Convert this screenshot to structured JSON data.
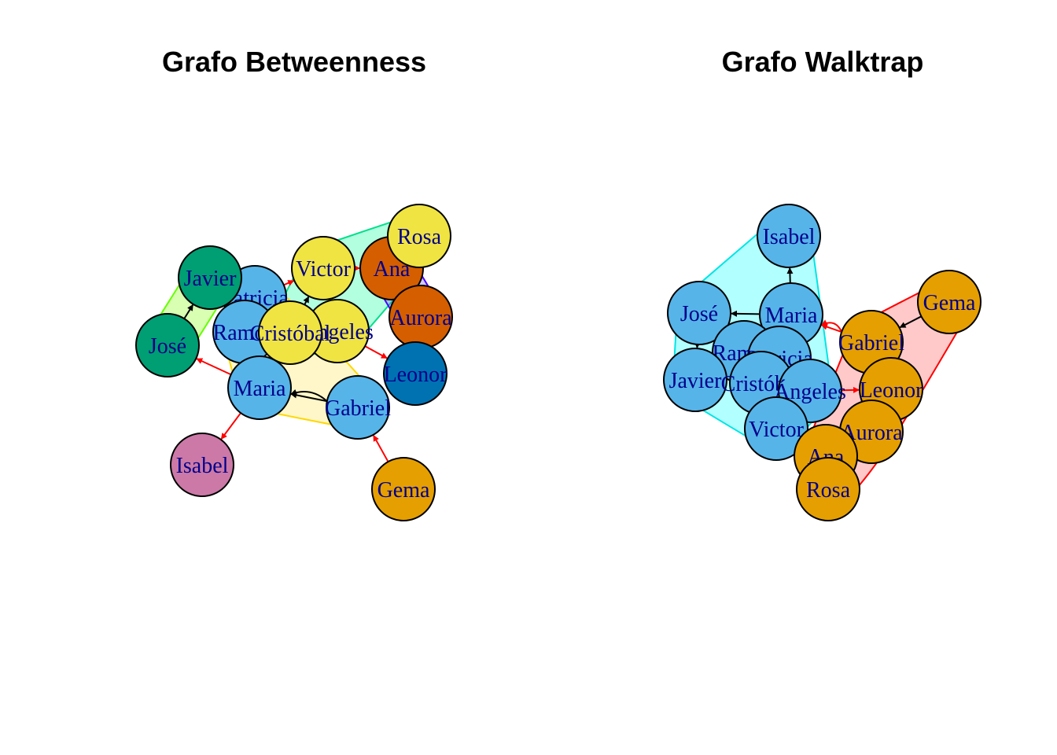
{
  "panels": [
    {
      "id": "betweenness",
      "title": "Grafo Betweenness",
      "hulls": [
        {
          "fill": "#7fff00",
          "stroke": "#66ff00",
          "members": [
            "Javier",
            "José"
          ]
        },
        {
          "fill": "#00ff99",
          "stroke": "#00e08a",
          "members": [
            "Victor",
            "Rosa",
            "Ángeles",
            "Cristóbal",
            "Ana"
          ]
        },
        {
          "fill": "#ffe44d",
          "stroke": "#ffd700",
          "members": [
            "Patricia",
            "Ramon",
            "Maria",
            "Gabriel",
            "Cristóbal"
          ]
        },
        {
          "fill": "#6a4bff",
          "stroke": "#4b00ff",
          "members": [
            "Ana",
            "Aurora"
          ]
        },
        {
          "fill": "#cc0000",
          "stroke": "#cc0000",
          "members": [
            "Gema"
          ]
        },
        {
          "fill": "#cc0000",
          "stroke": "#cc0000",
          "members": [
            "Leonor"
          ]
        },
        {
          "fill": "#cc0000",
          "stroke": "#cc0000",
          "members": [
            "Isabel"
          ]
        }
      ],
      "nodes": [
        {
          "label": "Patricia",
          "color": "#56b4e9"
        },
        {
          "label": "Javier",
          "color": "#009e73"
        },
        {
          "label": "José",
          "color": "#009e73"
        },
        {
          "label": "Ramon",
          "color": "#56b4e9"
        },
        {
          "label": "Victor",
          "color": "#f0e442"
        },
        {
          "label": "Ana",
          "color": "#d55e00"
        },
        {
          "label": "Rosa",
          "color": "#f0e442"
        },
        {
          "label": "Aurora",
          "color": "#d55e00"
        },
        {
          "label": "Ángeles",
          "color": "#f0e442"
        },
        {
          "label": "Cristóbal",
          "color": "#f0e442"
        },
        {
          "label": "Leonor",
          "color": "#0072b2"
        },
        {
          "label": "Maria",
          "color": "#56b4e9"
        },
        {
          "label": "Gabriel",
          "color": "#56b4e9"
        },
        {
          "label": "Isabel",
          "color": "#cc79a7"
        },
        {
          "label": "Gema",
          "color": "#e69f00"
        }
      ],
      "edges": [
        {
          "from": "José",
          "to": "Javier",
          "color": "#000000"
        },
        {
          "from": "Maria",
          "to": "José",
          "color": "#ff0000"
        },
        {
          "from": "Maria",
          "to": "Isabel",
          "color": "#ff0000"
        },
        {
          "from": "Gabriel",
          "to": "Maria",
          "color": "#000000"
        },
        {
          "from": "Gabriel",
          "to": "Maria",
          "color": "#000000",
          "curve": 1
        },
        {
          "from": "Gema",
          "to": "Gabriel",
          "color": "#ff0000"
        },
        {
          "from": "Ángeles",
          "to": "Leonor",
          "color": "#ff0000"
        },
        {
          "from": "Aurora",
          "to": "Leonor",
          "color": "#ff0000"
        },
        {
          "from": "Patricia",
          "to": "Victor",
          "color": "#ff0000"
        },
        {
          "from": "Cristóbal",
          "to": "Victor",
          "color": "#000000"
        },
        {
          "from": "Victor",
          "to": "Ana",
          "color": "#ff0000"
        },
        {
          "from": "Rosa",
          "to": "Ana",
          "color": "#000000"
        }
      ]
    },
    {
      "id": "walktrap",
      "title": "Grafo Walktrap",
      "hulls": [
        {
          "fill": "#00ffff",
          "stroke": "#00e5e5",
          "members": [
            "Isabel",
            "José",
            "Maria",
            "Ramon",
            "Patricia",
            "Javier",
            "Cristóbal",
            "Ángeles",
            "Victor"
          ]
        },
        {
          "fill": "#ff4d4d",
          "stroke": "#ff0000",
          "members": [
            "Gema",
            "Gabriel",
            "Leonor",
            "Aurora",
            "Ana",
            "Rosa"
          ]
        }
      ],
      "nodes": [
        {
          "label": "Isabel",
          "color": "#56b4e9"
        },
        {
          "label": "José",
          "color": "#56b4e9"
        },
        {
          "label": "Maria",
          "color": "#56b4e9"
        },
        {
          "label": "Ramon",
          "color": "#56b4e9"
        },
        {
          "label": "Patricia",
          "color": "#56b4e9"
        },
        {
          "label": "Javier",
          "color": "#56b4e9"
        },
        {
          "label": "Cristóbal",
          "color": "#56b4e9"
        },
        {
          "label": "Ángeles",
          "color": "#56b4e9"
        },
        {
          "label": "Victor",
          "color": "#56b4e9"
        },
        {
          "label": "Gema",
          "color": "#e69f00"
        },
        {
          "label": "Gabriel",
          "color": "#e69f00"
        },
        {
          "label": "Leonor",
          "color": "#e69f00"
        },
        {
          "label": "Aurora",
          "color": "#e69f00"
        },
        {
          "label": "Ana",
          "color": "#e69f00"
        },
        {
          "label": "Rosa",
          "color": "#e69f00"
        }
      ],
      "edges": [
        {
          "from": "Maria",
          "to": "Isabel",
          "color": "#000000"
        },
        {
          "from": "Maria",
          "to": "José",
          "color": "#000000"
        },
        {
          "from": "Gema",
          "to": "Gabriel",
          "color": "#000000"
        },
        {
          "from": "Gabriel",
          "to": "Maria",
          "color": "#ff0000"
        },
        {
          "from": "Gabriel",
          "to": "Maria",
          "color": "#ff0000",
          "curve": 1
        },
        {
          "from": "Ángeles",
          "to": "Leonor",
          "color": "#ff0000"
        },
        {
          "from": "Victor",
          "to": "Cristóbal",
          "color": "#000000"
        },
        {
          "from": "José",
          "to": "Javier",
          "color": "#000000"
        }
      ]
    }
  ]
}
